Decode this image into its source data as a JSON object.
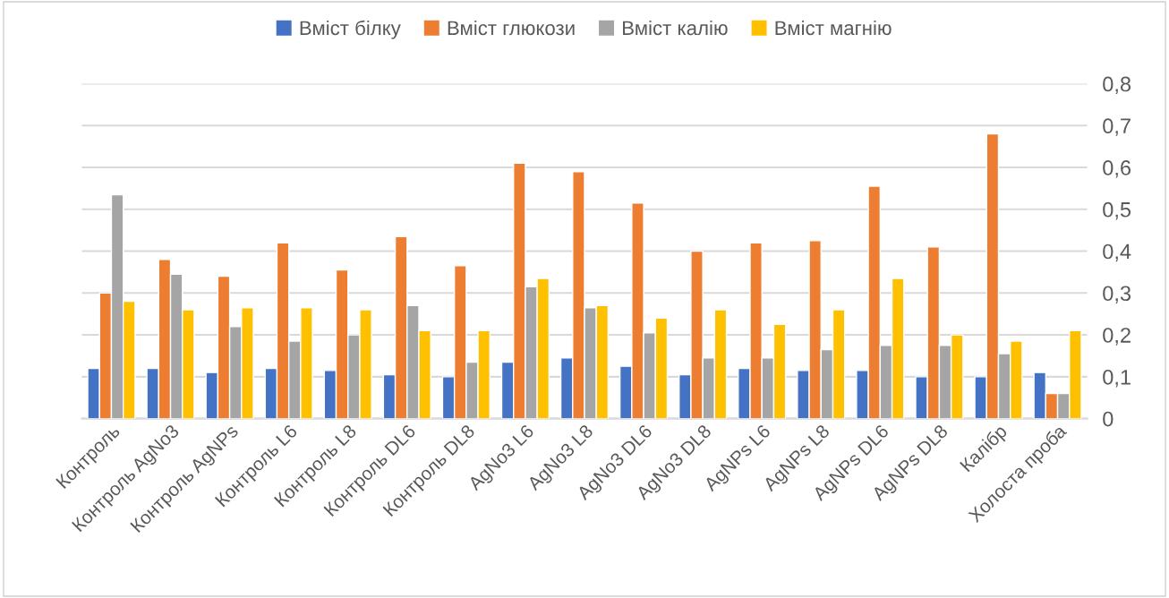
{
  "chart_data": {
    "type": "bar",
    "categories": [
      "Контроль",
      "Контроль AgNo3",
      "Контроль AgNPs",
      "Контроль L6",
      "Контроль L8",
      "Контроль DL6",
      "Контроль DL8",
      "AgNo3 L6",
      "AgNo3 L8",
      "AgNo3 DL6",
      "AgNo3 DL8",
      "AgNPs L6",
      "AgNPs L8",
      "AgNPs DL6",
      "AgNPs DL8",
      "Калібр",
      "Холоста проба"
    ],
    "series": [
      {
        "name": "Вміст білку",
        "color": "#4472c4",
        "values": [
          0.12,
          0.12,
          0.11,
          0.12,
          0.115,
          0.105,
          0.1,
          0.135,
          0.145,
          0.125,
          0.105,
          0.12,
          0.115,
          0.115,
          0.1,
          0.1,
          0.11
        ]
      },
      {
        "name": "Вміст глюкози",
        "color": "#ed7d31",
        "values": [
          0.3,
          0.38,
          0.34,
          0.42,
          0.355,
          0.435,
          0.365,
          0.61,
          0.59,
          0.515,
          0.4,
          0.42,
          0.425,
          0.555,
          0.41,
          0.68,
          0.06
        ]
      },
      {
        "name": "Вміст калію",
        "color": "#a5a5a5",
        "values": [
          0.535,
          0.345,
          0.22,
          0.185,
          0.2,
          0.27,
          0.135,
          0.315,
          0.265,
          0.205,
          0.145,
          0.145,
          0.165,
          0.175,
          0.175,
          0.155,
          0.06
        ]
      },
      {
        "name": "Вміст магнію",
        "color": "#ffc000",
        "values": [
          0.28,
          0.26,
          0.265,
          0.265,
          0.26,
          0.21,
          0.21,
          0.335,
          0.27,
          0.24,
          0.26,
          0.225,
          0.26,
          0.335,
          0.2,
          0.185,
          0.21
        ]
      }
    ],
    "ylim": [
      0,
      0.8
    ],
    "yticks": [
      0,
      {
        "value": 0.1,
        "label": "0,1"
      },
      {
        "value": 0.2,
        "label": "0,2"
      },
      {
        "value": 0.3,
        "label": "0,3"
      },
      {
        "value": 0.4,
        "label": "0,4"
      },
      {
        "value": 0.5,
        "label": "0,5"
      },
      {
        "value": 0.6,
        "label": "0,6"
      },
      {
        "value": 0.7,
        "label": "0,7"
      },
      {
        "value": 0.8,
        "label": "0,8"
      }
    ],
    "grid": "y",
    "legend": "top"
  }
}
